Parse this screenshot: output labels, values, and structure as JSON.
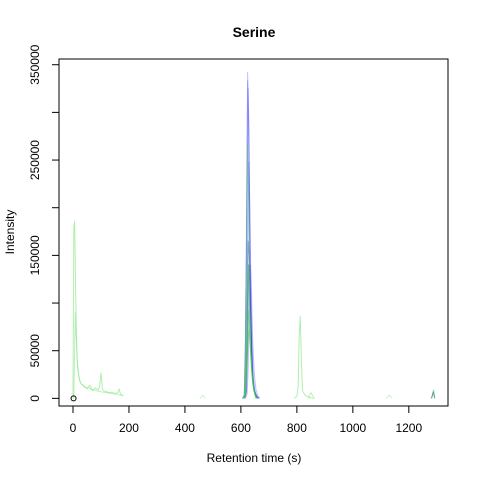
{
  "chart_data": {
    "type": "line",
    "title": "Serine",
    "xlabel": "Retention time (s)",
    "ylabel": "Intensity",
    "xlim": [
      -50,
      1340
    ],
    "ylim": [
      -8000,
      356000
    ],
    "x_ticks": [
      0,
      200,
      400,
      600,
      800,
      1000,
      1200
    ],
    "x_tick_labels": [
      "0",
      "200",
      "400",
      "600",
      "800",
      "1000",
      "1200"
    ],
    "y_ticks": [
      0,
      50000,
      150000,
      250000,
      350000
    ],
    "y_tick_labels": [
      "0",
      "50000",
      "150000",
      "250000",
      "350000"
    ],
    "y_minor_ticks": [
      100000,
      200000,
      300000
    ],
    "grid": false,
    "legend": "none",
    "colors": {
      "blue": "#4d4dff",
      "dark_blue": "#2a2ad0",
      "green": "#3cd23c",
      "light_green": "#8fe88f",
      "axis": "#000000"
    },
    "point": {
      "x": 2,
      "y": 0
    },
    "series": [
      {
        "color": "blue",
        "opacity": 0.35,
        "x": [
          605,
          612,
          616,
          620,
          624,
          628,
          632,
          636,
          640,
          645,
          650,
          658,
          665
        ],
        "y": [
          0,
          3000,
          60000,
          180000,
          342000,
          290000,
          150000,
          80000,
          40000,
          15000,
          6000,
          2000,
          0
        ]
      },
      {
        "color": "blue",
        "opacity": 0.35,
        "x": [
          605,
          612,
          616,
          620,
          624,
          628,
          632,
          636,
          640,
          645,
          650,
          658,
          665
        ],
        "y": [
          0,
          2500,
          55000,
          170000,
          333000,
          280000,
          140000,
          75000,
          35000,
          12000,
          5000,
          1500,
          0
        ]
      },
      {
        "color": "blue",
        "opacity": 0.35,
        "x": [
          608,
          614,
          618,
          622,
          626,
          630,
          634,
          638,
          642,
          648,
          655,
          662
        ],
        "y": [
          0,
          4000,
          70000,
          200000,
          325000,
          240000,
          120000,
          60000,
          25000,
          9000,
          3000,
          0
        ]
      },
      {
        "color": "blue",
        "opacity": 0.4,
        "x": [
          610,
          616,
          620,
          624,
          628,
          632,
          636,
          640,
          644,
          650,
          656,
          664
        ],
        "y": [
          0,
          5000,
          45000,
          150000,
          248000,
          200000,
          110000,
          55000,
          22000,
          8000,
          2500,
          0
        ]
      },
      {
        "color": "dark_blue",
        "opacity": 0.45,
        "x": [
          612,
          618,
          622,
          626,
          630,
          634,
          638,
          642,
          648,
          654,
          660
        ],
        "y": [
          0,
          6000,
          60000,
          165000,
          150000,
          95000,
          48000,
          20000,
          7000,
          2000,
          0
        ]
      },
      {
        "color": "dark_blue",
        "opacity": 0.45,
        "x": [
          614,
          620,
          624,
          628,
          632,
          636,
          640,
          646,
          652,
          658
        ],
        "y": [
          0,
          7000,
          55000,
          140000,
          120000,
          70000,
          32000,
          10000,
          3000,
          0
        ]
      },
      {
        "color": "blue",
        "opacity": 0.35,
        "x": [
          616,
          622,
          626,
          630,
          634,
          638,
          642,
          648,
          654,
          660,
          668
        ],
        "y": [
          0,
          4000,
          30000,
          95000,
          140000,
          110000,
          60000,
          25000,
          9000,
          3000,
          0
        ]
      },
      {
        "color": "green",
        "opacity": 0.45,
        "x": [
          605,
          612,
          616,
          620,
          624,
          628,
          632,
          636,
          642,
          650,
          658
        ],
        "y": [
          0,
          3000,
          40000,
          150000,
          268000,
          200000,
          100000,
          45000,
          15000,
          4000,
          0
        ]
      },
      {
        "color": "green",
        "opacity": 0.5,
        "x": [
          607,
          614,
          618,
          622,
          626,
          630,
          634,
          640,
          648,
          656
        ],
        "y": [
          0,
          4000,
          35000,
          100000,
          140000,
          105000,
          60000,
          22000,
          6000,
          0
        ]
      },
      {
        "color": "green",
        "opacity": 0.5,
        "x": [
          609,
          615,
          619,
          623,
          627,
          631,
          637,
          645,
          653
        ],
        "y": [
          0,
          5000,
          30000,
          75000,
          92000,
          70000,
          35000,
          10000,
          0
        ]
      },
      {
        "color": "green",
        "opacity": 0.45,
        "x": [
          611,
          617,
          621,
          625,
          629,
          633,
          639,
          647,
          655
        ],
        "y": [
          0,
          4000,
          25000,
          60000,
          72000,
          55000,
          28000,
          8000,
          0
        ]
      },
      {
        "color": "light_green",
        "opacity": 0.7,
        "x": [
          0,
          3,
          6,
          9,
          12,
          15,
          20,
          25,
          30,
          40,
          50,
          60,
          70,
          80,
          90,
          95,
          100,
          105,
          110,
          120,
          130,
          140,
          150,
          160,
          165,
          170,
          180
        ],
        "y": [
          0,
          180000,
          186000,
          120000,
          70000,
          40000,
          25000,
          18000,
          15000,
          13000,
          10000,
          14000,
          8000,
          11000,
          9000,
          12000,
          27000,
          10000,
          8000,
          7000,
          6000,
          6500,
          5000,
          6000,
          10000,
          4000,
          3000
        ]
      },
      {
        "color": "light_green",
        "opacity": 0.6,
        "x": [
          3,
          8,
          12,
          16,
          22,
          30,
          40,
          55,
          70,
          85,
          100,
          120,
          140,
          160,
          180
        ],
        "y": [
          0,
          90000,
          60000,
          35000,
          20000,
          15000,
          12000,
          11000,
          9000,
          8000,
          7000,
          6000,
          5000,
          4000,
          3000
        ]
      },
      {
        "color": "light_green",
        "opacity": 0.7,
        "x": [
          790,
          800,
          805,
          808,
          812,
          816,
          820,
          830,
          845,
          860
        ],
        "y": [
          0,
          2000,
          15000,
          65000,
          86000,
          40000,
          8000,
          3000,
          1000,
          0
        ]
      },
      {
        "color": "light_green",
        "opacity": 0.6,
        "x": [
          840,
          846,
          850,
          856,
          862
        ],
        "y": [
          0,
          4000,
          6000,
          3000,
          0
        ]
      },
      {
        "color": "light_green",
        "opacity": 0.5,
        "x": [
          455,
          460,
          464,
          468,
          472
        ],
        "y": [
          0,
          2000,
          3500,
          2000,
          0
        ]
      },
      {
        "color": "light_green",
        "opacity": 0.5,
        "x": [
          1120,
          1126,
          1130,
          1135,
          1140
        ],
        "y": [
          0,
          2000,
          3500,
          2000,
          0
        ]
      },
      {
        "color": "dark_blue",
        "opacity": 0.6,
        "x": [
          1280,
          1284,
          1287,
          1290,
          1293
        ],
        "y": [
          0,
          3000,
          7000,
          4000,
          0
        ]
      },
      {
        "color": "green",
        "opacity": 0.5,
        "x": [
          1282,
          1286,
          1289,
          1292
        ],
        "y": [
          0,
          4000,
          9000,
          0
        ]
      }
    ]
  }
}
